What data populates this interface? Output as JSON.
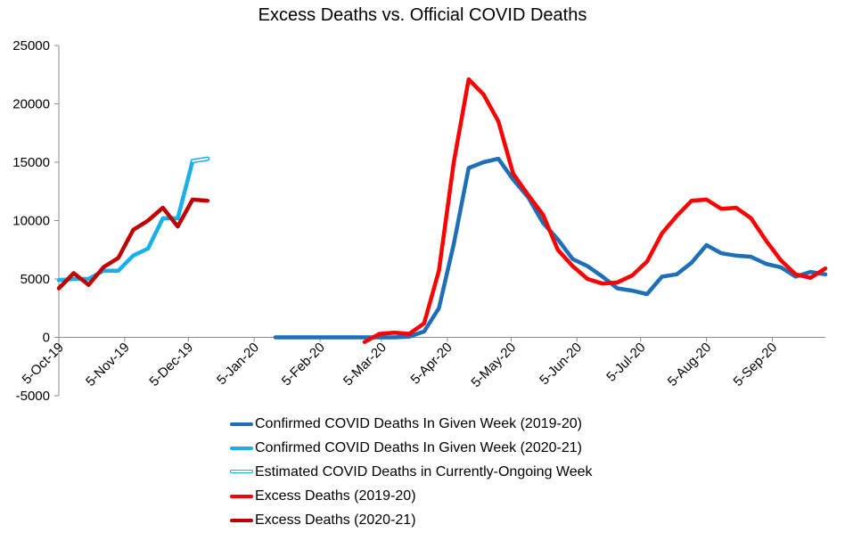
{
  "chart_data": {
    "type": "line",
    "title": "Excess Deaths vs. Official COVID Deaths",
    "xlabel": "",
    "ylabel": "",
    "ylim": [
      -5000,
      25000
    ],
    "yticks": [
      25000,
      20000,
      15000,
      10000,
      5000,
      0,
      -5000
    ],
    "ytick_labels": [
      "25000",
      "20000",
      "15000",
      "10000",
      "5000",
      "0",
      "-5000"
    ],
    "xlim": [
      "2019-10-05",
      "2020-09-30"
    ],
    "xticks": [
      "2019-10-05",
      "2019-11-05",
      "2019-12-05",
      "2020-01-05",
      "2020-02-05",
      "2020-03-05",
      "2020-04-05",
      "2020-05-05",
      "2020-06-05",
      "2020-07-05",
      "2020-08-05",
      "2020-09-05"
    ],
    "xtick_labels": [
      "5-Oct-19",
      "5-Nov-19",
      "5-Dec-19",
      "5-Jan-20",
      "5-Feb-20",
      "5-Mar-20",
      "5-Apr-20",
      "5-May-20",
      "5-Jun-20",
      "5-Jul-20",
      "5-Aug-20",
      "5-Sep-20"
    ],
    "grid": false,
    "legend_position": "bottom",
    "series": [
      {
        "name": "Confirmed COVID Deaths In Given Week (2019-20)",
        "color": "#1f6fb8",
        "style": "solid",
        "x": [
          "2020-01-15",
          "2020-01-22",
          "2020-01-29",
          "2020-02-05",
          "2020-02-12",
          "2020-02-19",
          "2020-02-26",
          "2020-03-04",
          "2020-03-11",
          "2020-03-18",
          "2020-03-25",
          "2020-04-01",
          "2020-04-08",
          "2020-04-15",
          "2020-04-22",
          "2020-04-29",
          "2020-05-06",
          "2020-05-13",
          "2020-05-20",
          "2020-05-27",
          "2020-06-03",
          "2020-06-10",
          "2020-06-17",
          "2020-06-24",
          "2020-07-01",
          "2020-07-08",
          "2020-07-15",
          "2020-07-22",
          "2020-07-29",
          "2020-08-05",
          "2020-08-12",
          "2020-08-19",
          "2020-08-26",
          "2020-09-02",
          "2020-09-09",
          "2020-09-16",
          "2020-09-23",
          "2020-09-30"
        ],
        "y": [
          0,
          0,
          0,
          0,
          0,
          0,
          0,
          0,
          0,
          60,
          500,
          2500,
          8000,
          14500,
          15000,
          15300,
          13500,
          12000,
          9800,
          8400,
          6700,
          6100,
          5200,
          4200,
          4000,
          3700,
          5200,
          5400,
          6400,
          7900,
          7200,
          7000,
          6900,
          6300,
          6000,
          5200,
          5600,
          5400
        ]
      },
      {
        "name": "Confirmed COVID Deaths In Given Week (2020-21)",
        "color": "#17b0ea",
        "style": "solid",
        "x": [
          "2019-10-05",
          "2019-10-12",
          "2019-10-19",
          "2019-10-26",
          "2019-11-02",
          "2019-11-09",
          "2019-11-16",
          "2019-11-23",
          "2019-11-30",
          "2019-12-07",
          "2019-12-14"
        ],
        "y": [
          4900,
          5000,
          5000,
          5700,
          5700,
          7000,
          7600,
          10200,
          10200,
          15100,
          15300
        ]
      },
      {
        "name": "Estimated COVID Deaths in Currently-Ongoing Week",
        "color": "#17b0ea",
        "style": "hollow",
        "x": [
          "2019-12-07",
          "2019-12-14"
        ],
        "y": [
          15100,
          15300
        ]
      },
      {
        "name": "Excess Deaths (2019-20)",
        "color": "#ff0000",
        "style": "solid",
        "x": [
          "2020-02-26",
          "2020-03-04",
          "2020-03-11",
          "2020-03-18",
          "2020-03-25",
          "2020-04-01",
          "2020-04-08",
          "2020-04-15",
          "2020-04-22",
          "2020-04-29",
          "2020-05-06",
          "2020-05-13",
          "2020-05-20",
          "2020-05-27",
          "2020-06-03",
          "2020-06-10",
          "2020-06-17",
          "2020-06-24",
          "2020-07-01",
          "2020-07-08",
          "2020-07-15",
          "2020-07-22",
          "2020-07-29",
          "2020-08-05",
          "2020-08-12",
          "2020-08-19",
          "2020-08-26",
          "2020-09-02",
          "2020-09-09",
          "2020-09-16",
          "2020-09-23",
          "2020-09-30"
        ],
        "y": [
          -400,
          300,
          400,
          300,
          1200,
          5700,
          15000,
          22100,
          20800,
          18500,
          14000,
          12200,
          10500,
          7500,
          6100,
          5000,
          4600,
          4700,
          5300,
          6500,
          8900,
          10400,
          11700,
          11800,
          11000,
          11100,
          10200,
          8300,
          6600,
          5400,
          5100,
          5900
        ]
      },
      {
        "name": "Excess Deaths (2020-21)",
        "color": "#c00000",
        "style": "solid",
        "x": [
          "2019-10-05",
          "2019-10-12",
          "2019-10-19",
          "2019-10-26",
          "2019-11-02",
          "2019-11-09",
          "2019-11-16",
          "2019-11-23",
          "2019-11-30",
          "2019-12-07",
          "2019-12-14"
        ],
        "y": [
          4200,
          5500,
          4500,
          6000,
          6800,
          9200,
          10000,
          11100,
          9500,
          11800,
          11700
        ]
      }
    ]
  }
}
